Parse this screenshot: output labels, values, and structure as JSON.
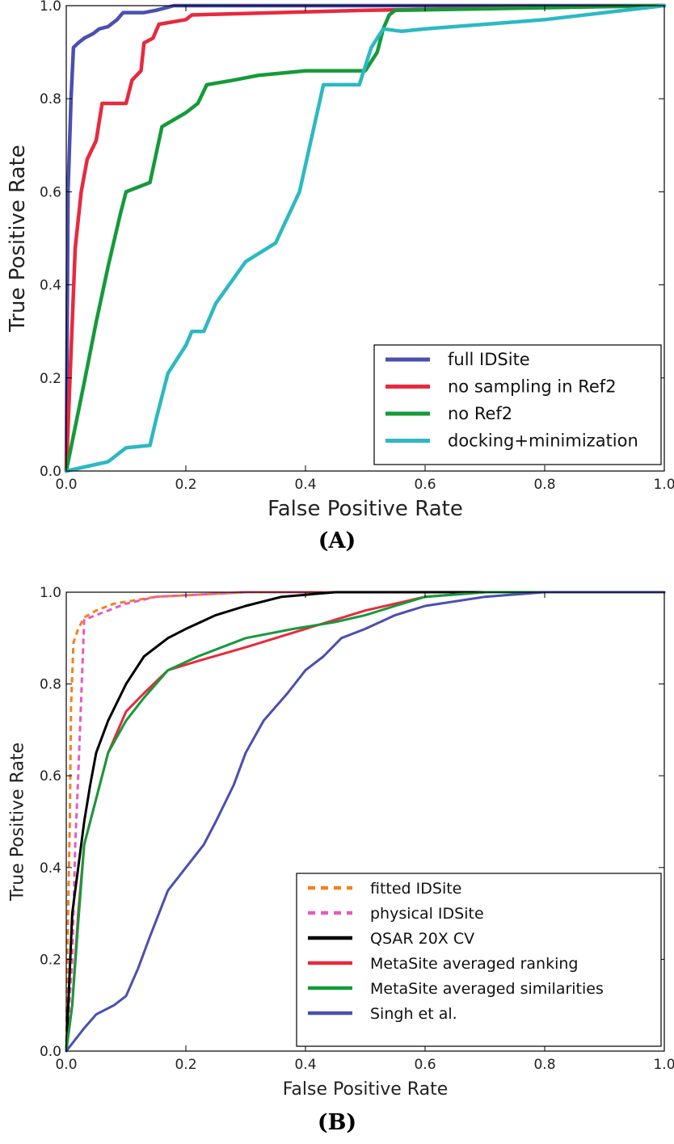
{
  "chart_data": [
    {
      "type": "line",
      "panel_label": "(A)",
      "xlabel": "False Positive Rate",
      "ylabel": "True Positive Rate",
      "xlim": [
        0,
        1
      ],
      "ylim": [
        0,
        1
      ],
      "xticks": [
        "0.0",
        "0.2",
        "0.4",
        "0.6",
        "0.8",
        "1.0"
      ],
      "yticks": [
        "0.0",
        "0.2",
        "0.4",
        "0.6",
        "0.8",
        "1.0"
      ],
      "grid": false,
      "legend_position": "lower-right",
      "series": [
        {
          "name": "full IDSite",
          "color": "#4a4fb0",
          "style": "solid",
          "points": [
            [
              0,
              0
            ],
            [
              0.003,
              0.6
            ],
            [
              0.008,
              0.8
            ],
            [
              0.012,
              0.91
            ],
            [
              0.02,
              0.92
            ],
            [
              0.03,
              0.93
            ],
            [
              0.045,
              0.94
            ],
            [
              0.055,
              0.95
            ],
            [
              0.07,
              0.955
            ],
            [
              0.085,
              0.97
            ],
            [
              0.095,
              0.985
            ],
            [
              0.13,
              0.985
            ],
            [
              0.15,
              0.99
            ],
            [
              0.18,
              1.0
            ],
            [
              1.0,
              1.0
            ]
          ]
        },
        {
          "name": "no sampling in Ref2",
          "color": "#e8293e",
          "style": "solid",
          "points": [
            [
              0,
              0
            ],
            [
              0.015,
              0.48
            ],
            [
              0.025,
              0.6
            ],
            [
              0.035,
              0.67
            ],
            [
              0.05,
              0.71
            ],
            [
              0.06,
              0.79
            ],
            [
              0.1,
              0.79
            ],
            [
              0.11,
              0.84
            ],
            [
              0.125,
              0.86
            ],
            [
              0.13,
              0.92
            ],
            [
              0.145,
              0.93
            ],
            [
              0.155,
              0.96
            ],
            [
              0.2,
              0.97
            ],
            [
              0.21,
              0.98
            ],
            [
              0.5,
              0.99
            ],
            [
              1.0,
              1.0
            ]
          ]
        },
        {
          "name": "no Ref2",
          "color": "#159a3a",
          "style": "solid",
          "points": [
            [
              0,
              0
            ],
            [
              0.03,
              0.19
            ],
            [
              0.05,
              0.32
            ],
            [
              0.07,
              0.44
            ],
            [
              0.09,
              0.55
            ],
            [
              0.1,
              0.6
            ],
            [
              0.14,
              0.62
            ],
            [
              0.16,
              0.74
            ],
            [
              0.2,
              0.77
            ],
            [
              0.22,
              0.79
            ],
            [
              0.235,
              0.83
            ],
            [
              0.28,
              0.84
            ],
            [
              0.32,
              0.85
            ],
            [
              0.4,
              0.86
            ],
            [
              0.5,
              0.86
            ],
            [
              0.52,
              0.9
            ],
            [
              0.53,
              0.95
            ],
            [
              0.54,
              0.98
            ],
            [
              0.55,
              0.99
            ],
            [
              1.0,
              1.0
            ]
          ]
        },
        {
          "name": "docking+minimization",
          "color": "#2cb9c2",
          "style": "solid",
          "points": [
            [
              0,
              0
            ],
            [
              0.07,
              0.02
            ],
            [
              0.1,
              0.05
            ],
            [
              0.14,
              0.055
            ],
            [
              0.15,
              0.11
            ],
            [
              0.17,
              0.21
            ],
            [
              0.2,
              0.27
            ],
            [
              0.21,
              0.3
            ],
            [
              0.23,
              0.3
            ],
            [
              0.25,
              0.36
            ],
            [
              0.3,
              0.45
            ],
            [
              0.35,
              0.49
            ],
            [
              0.39,
              0.6
            ],
            [
              0.43,
              0.83
            ],
            [
              0.49,
              0.83
            ],
            [
              0.51,
              0.91
            ],
            [
              0.53,
              0.95
            ],
            [
              0.56,
              0.945
            ],
            [
              0.6,
              0.95
            ],
            [
              0.8,
              0.97
            ],
            [
              1.0,
              1.0
            ]
          ]
        }
      ]
    },
    {
      "type": "line",
      "panel_label": "(B)",
      "xlabel": "False Positive Rate",
      "ylabel": "True Positive Rate",
      "xlim": [
        0,
        1
      ],
      "ylim": [
        0,
        1
      ],
      "xticks": [
        "0.0",
        "0.2",
        "0.4",
        "0.6",
        "0.8",
        "1.0"
      ],
      "yticks": [
        "0.0",
        "0.2",
        "0.4",
        "0.6",
        "0.8",
        "1.0"
      ],
      "grid": false,
      "legend_position": "lower-right",
      "series": [
        {
          "name": "fitted IDSite",
          "color": "#f5811f",
          "style": "dashed",
          "points": [
            [
              0,
              0
            ],
            [
              0.003,
              0.3
            ],
            [
              0.006,
              0.5
            ],
            [
              0.008,
              0.75
            ],
            [
              0.012,
              0.89
            ],
            [
              0.02,
              0.92
            ],
            [
              0.03,
              0.945
            ],
            [
              0.05,
              0.96
            ],
            [
              0.08,
              0.975
            ],
            [
              0.15,
              0.99
            ],
            [
              0.3,
              1.0
            ],
            [
              1.0,
              1.0
            ]
          ]
        },
        {
          "name": "physical IDSite",
          "color": "#e55bc0",
          "style": "dashed",
          "points": [
            [
              0,
              0
            ],
            [
              0.01,
              0.2
            ],
            [
              0.015,
              0.45
            ],
            [
              0.02,
              0.6
            ],
            [
              0.03,
              0.94
            ],
            [
              0.04,
              0.945
            ],
            [
              0.05,
              0.95
            ],
            [
              0.07,
              0.96
            ],
            [
              0.1,
              0.975
            ],
            [
              0.15,
              0.99
            ],
            [
              0.3,
              1.0
            ],
            [
              1.0,
              1.0
            ]
          ]
        },
        {
          "name": "QSAR 20X CV",
          "color": "#000000",
          "style": "solid",
          "points": [
            [
              0,
              0
            ],
            [
              0.005,
              0.15
            ],
            [
              0.01,
              0.3
            ],
            [
              0.02,
              0.4
            ],
            [
              0.03,
              0.5
            ],
            [
              0.04,
              0.58
            ],
            [
              0.05,
              0.65
            ],
            [
              0.07,
              0.72
            ],
            [
              0.1,
              0.8
            ],
            [
              0.13,
              0.86
            ],
            [
              0.17,
              0.9
            ],
            [
              0.2,
              0.92
            ],
            [
              0.25,
              0.95
            ],
            [
              0.3,
              0.97
            ],
            [
              0.36,
              0.99
            ],
            [
              0.45,
              1.0
            ],
            [
              1.0,
              1.0
            ]
          ]
        },
        {
          "name": "MetaSite averaged ranking",
          "color": "#e8293e",
          "style": "solid",
          "points": [
            [
              0,
              0
            ],
            [
              0.01,
              0.1
            ],
            [
              0.02,
              0.3
            ],
            [
              0.03,
              0.45
            ],
            [
              0.05,
              0.55
            ],
            [
              0.07,
              0.65
            ],
            [
              0.1,
              0.74
            ],
            [
              0.13,
              0.78
            ],
            [
              0.17,
              0.83
            ],
            [
              0.22,
              0.85
            ],
            [
              0.3,
              0.88
            ],
            [
              0.35,
              0.9
            ],
            [
              0.4,
              0.92
            ],
            [
              0.45,
              0.94
            ],
            [
              0.5,
              0.96
            ],
            [
              0.6,
              0.99
            ],
            [
              0.7,
              1.0
            ],
            [
              1.0,
              1.0
            ]
          ]
        },
        {
          "name": "MetaSite averaged similarities",
          "color": "#159a3a",
          "style": "solid",
          "points": [
            [
              0,
              0
            ],
            [
              0.01,
              0.1
            ],
            [
              0.02,
              0.28
            ],
            [
              0.03,
              0.45
            ],
            [
              0.05,
              0.55
            ],
            [
              0.07,
              0.65
            ],
            [
              0.1,
              0.72
            ],
            [
              0.13,
              0.77
            ],
            [
              0.17,
              0.83
            ],
            [
              0.22,
              0.86
            ],
            [
              0.3,
              0.9
            ],
            [
              0.38,
              0.92
            ],
            [
              0.45,
              0.935
            ],
            [
              0.5,
              0.95
            ],
            [
              0.55,
              0.97
            ],
            [
              0.6,
              0.99
            ],
            [
              0.7,
              1.0
            ],
            [
              1.0,
              1.0
            ]
          ]
        },
        {
          "name": "Singh et al.",
          "color": "#4a4fb0",
          "style": "solid",
          "points": [
            [
              0,
              0
            ],
            [
              0.03,
              0.05
            ],
            [
              0.05,
              0.08
            ],
            [
              0.08,
              0.1
            ],
            [
              0.1,
              0.12
            ],
            [
              0.12,
              0.18
            ],
            [
              0.14,
              0.25
            ],
            [
              0.17,
              0.35
            ],
            [
              0.2,
              0.4
            ],
            [
              0.23,
              0.45
            ],
            [
              0.25,
              0.5
            ],
            [
              0.28,
              0.58
            ],
            [
              0.3,
              0.65
            ],
            [
              0.33,
              0.72
            ],
            [
              0.37,
              0.78
            ],
            [
              0.4,
              0.83
            ],
            [
              0.43,
              0.86
            ],
            [
              0.46,
              0.9
            ],
            [
              0.5,
              0.92
            ],
            [
              0.55,
              0.95
            ],
            [
              0.6,
              0.97
            ],
            [
              0.7,
              0.99
            ],
            [
              0.8,
              1.0
            ],
            [
              1.0,
              1.0
            ]
          ]
        }
      ]
    }
  ]
}
